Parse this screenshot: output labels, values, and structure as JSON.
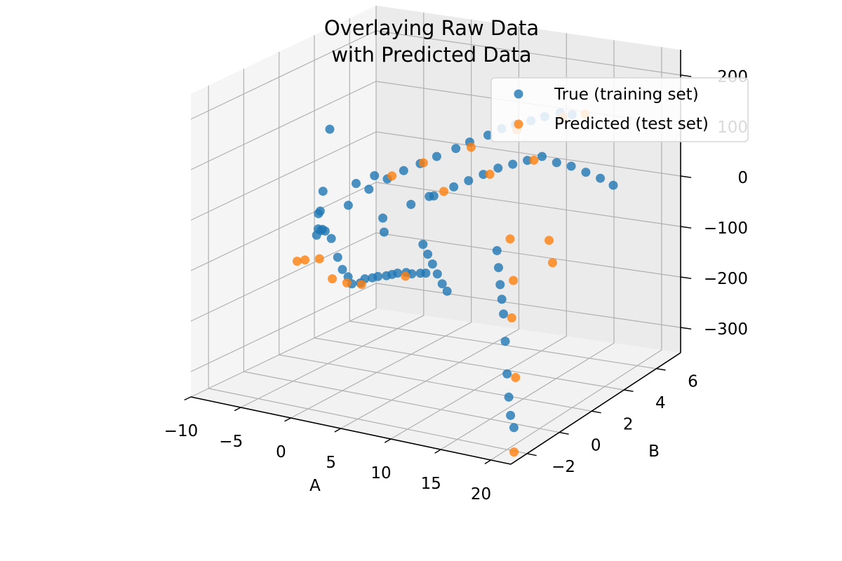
{
  "chart_data": {
    "type": "scatter",
    "projection": "3d",
    "title_line1": "Overlaying Raw Data",
    "title_line2": "with Predicted Data",
    "xlabel": "A",
    "ylabel": "B",
    "zlabel": "",
    "xlim": [
      -10,
      22
    ],
    "ylim": [
      -3,
      7.5
    ],
    "zlim": [
      -350,
      250
    ],
    "xticks": [
      "−10",
      "−5",
      "0",
      "5",
      "10",
      "15",
      "20"
    ],
    "yticks": [
      "−2",
      "0",
      "2",
      "4",
      "6"
    ],
    "zticks": [
      "200",
      "100",
      "0",
      "−100",
      "−200",
      "−300"
    ],
    "grid": true,
    "legend": "top-right",
    "series": [
      {
        "name": "True (training set)",
        "color": "#1f77b4",
        "points": [
          [
            -9.5,
            4.6,
            55
          ],
          [
            -8.2,
            3.5,
            -45
          ],
          [
            -7.4,
            2.8,
            -75
          ],
          [
            -6.5,
            2.4,
            -60
          ],
          [
            -5.8,
            1.8,
            -95
          ],
          [
            -5.1,
            1.5,
            -75
          ],
          [
            -4.3,
            1.2,
            -70
          ],
          [
            -3.6,
            0.9,
            -60
          ],
          [
            -2.8,
            0.6,
            -55
          ],
          [
            -2.0,
            0.5,
            -65
          ],
          [
            -1.5,
            1.2,
            -10
          ],
          [
            -0.8,
            2.0,
            10
          ],
          [
            0.2,
            2.5,
            25
          ],
          [
            1.0,
            3.0,
            35
          ],
          [
            2.0,
            3.4,
            45
          ],
          [
            3.0,
            3.8,
            55
          ],
          [
            4.1,
            4.3,
            65
          ],
          [
            5.0,
            4.6,
            75
          ],
          [
            6.2,
            5.0,
            85
          ],
          [
            7.1,
            5.3,
            95
          ],
          [
            8.0,
            5.6,
            100
          ],
          [
            9.1,
            5.9,
            105
          ],
          [
            10.0,
            6.2,
            110
          ],
          [
            11.1,
            6.5,
            115
          ],
          [
            12.0,
            6.7,
            110
          ],
          [
            -1.0,
            0.3,
            -95
          ],
          [
            0.0,
            0.0,
            -110
          ],
          [
            1.1,
            -0.3,
            -115
          ],
          [
            2.0,
            -0.6,
            -120
          ],
          [
            3.2,
            -0.8,
            -110
          ],
          [
            4.0,
            -1.0,
            -95
          ],
          [
            5.1,
            -1.2,
            -85
          ],
          [
            6.0,
            -1.4,
            -75
          ],
          [
            7.2,
            -1.6,
            -65
          ],
          [
            8.1,
            -1.8,
            -55
          ],
          [
            9.0,
            -2.0,
            -45
          ],
          [
            10.2,
            -2.2,
            -35
          ],
          [
            11.1,
            -2.4,
            -30
          ],
          [
            12.3,
            -2.6,
            -20
          ],
          [
            13.0,
            -2.7,
            -15
          ],
          [
            3.5,
            2.0,
            -5
          ],
          [
            4.5,
            2.5,
            5
          ],
          [
            5.5,
            2.2,
            15
          ],
          [
            6.5,
            2.8,
            25
          ],
          [
            7.5,
            3.1,
            35
          ],
          [
            8.5,
            3.4,
            45
          ],
          [
            9.5,
            3.7,
            55
          ],
          [
            10.5,
            4.0,
            60
          ],
          [
            11.5,
            4.3,
            65
          ],
          [
            12.5,
            4.6,
            70
          ],
          [
            13.5,
            4.9,
            55
          ],
          [
            14.5,
            5.2,
            45
          ],
          [
            15.5,
            5.5,
            30
          ],
          [
            16.5,
            5.8,
            15
          ],
          [
            17.5,
            6.0,
            0
          ],
          [
            14.0,
            1.0,
            -40
          ],
          [
            15.0,
            0.5,
            -60
          ],
          [
            16.0,
            0.0,
            -80
          ],
          [
            17.0,
            -0.5,
            -95
          ],
          [
            18.0,
            -1.0,
            -110
          ],
          [
            19.0,
            -1.5,
            -150
          ],
          [
            20.0,
            -2.0,
            -200
          ],
          [
            20.5,
            -2.2,
            -240
          ],
          [
            21.0,
            -2.4,
            -270
          ],
          [
            21.5,
            -2.5,
            -290
          ],
          [
            -3.0,
            2.5,
            5
          ],
          [
            -2.0,
            3.0,
            15
          ],
          [
            1.5,
            1.5,
            -30
          ],
          [
            2.5,
            1.0,
            -45
          ],
          [
            6.8,
            0.8,
            -50
          ],
          [
            7.8,
            0.5,
            -60
          ],
          [
            8.8,
            0.2,
            -70
          ],
          [
            9.8,
            -0.1,
            -80
          ],
          [
            10.8,
            -0.4,
            -90
          ],
          [
            11.8,
            -0.7,
            -95
          ]
        ]
      },
      {
        "name": "Predicted (test set)",
        "color": "#ff7f0e",
        "points": [
          [
            -6.0,
            0.8,
            -130
          ],
          [
            -4.5,
            0.4,
            -115
          ],
          [
            -2.5,
            0.1,
            -100
          ],
          [
            -0.5,
            -0.3,
            -125
          ],
          [
            1.5,
            -0.6,
            -120
          ],
          [
            3.5,
            -0.9,
            -110
          ],
          [
            0.5,
            2.6,
            30
          ],
          [
            2.5,
            3.3,
            50
          ],
          [
            5.5,
            4.4,
            70
          ],
          [
            8.5,
            5.4,
            95
          ],
          [
            11.5,
            6.4,
            110
          ],
          [
            13.0,
            6.9,
            110
          ],
          [
            6.0,
            2.5,
            20
          ],
          [
            9.0,
            3.5,
            45
          ],
          [
            12.0,
            4.4,
            65
          ],
          [
            14.5,
            1.5,
            -25
          ],
          [
            16.5,
            0.5,
            -80
          ],
          [
            18.5,
            -0.8,
            -120
          ],
          [
            20.2,
            -1.6,
            -215
          ],
          [
            22.0,
            -2.8,
            -330
          ],
          [
            16.8,
            2.5,
            -40
          ],
          [
            18.0,
            2.0,
            -70
          ],
          [
            10.3,
            -2.3,
            -40
          ]
        ]
      }
    ]
  }
}
